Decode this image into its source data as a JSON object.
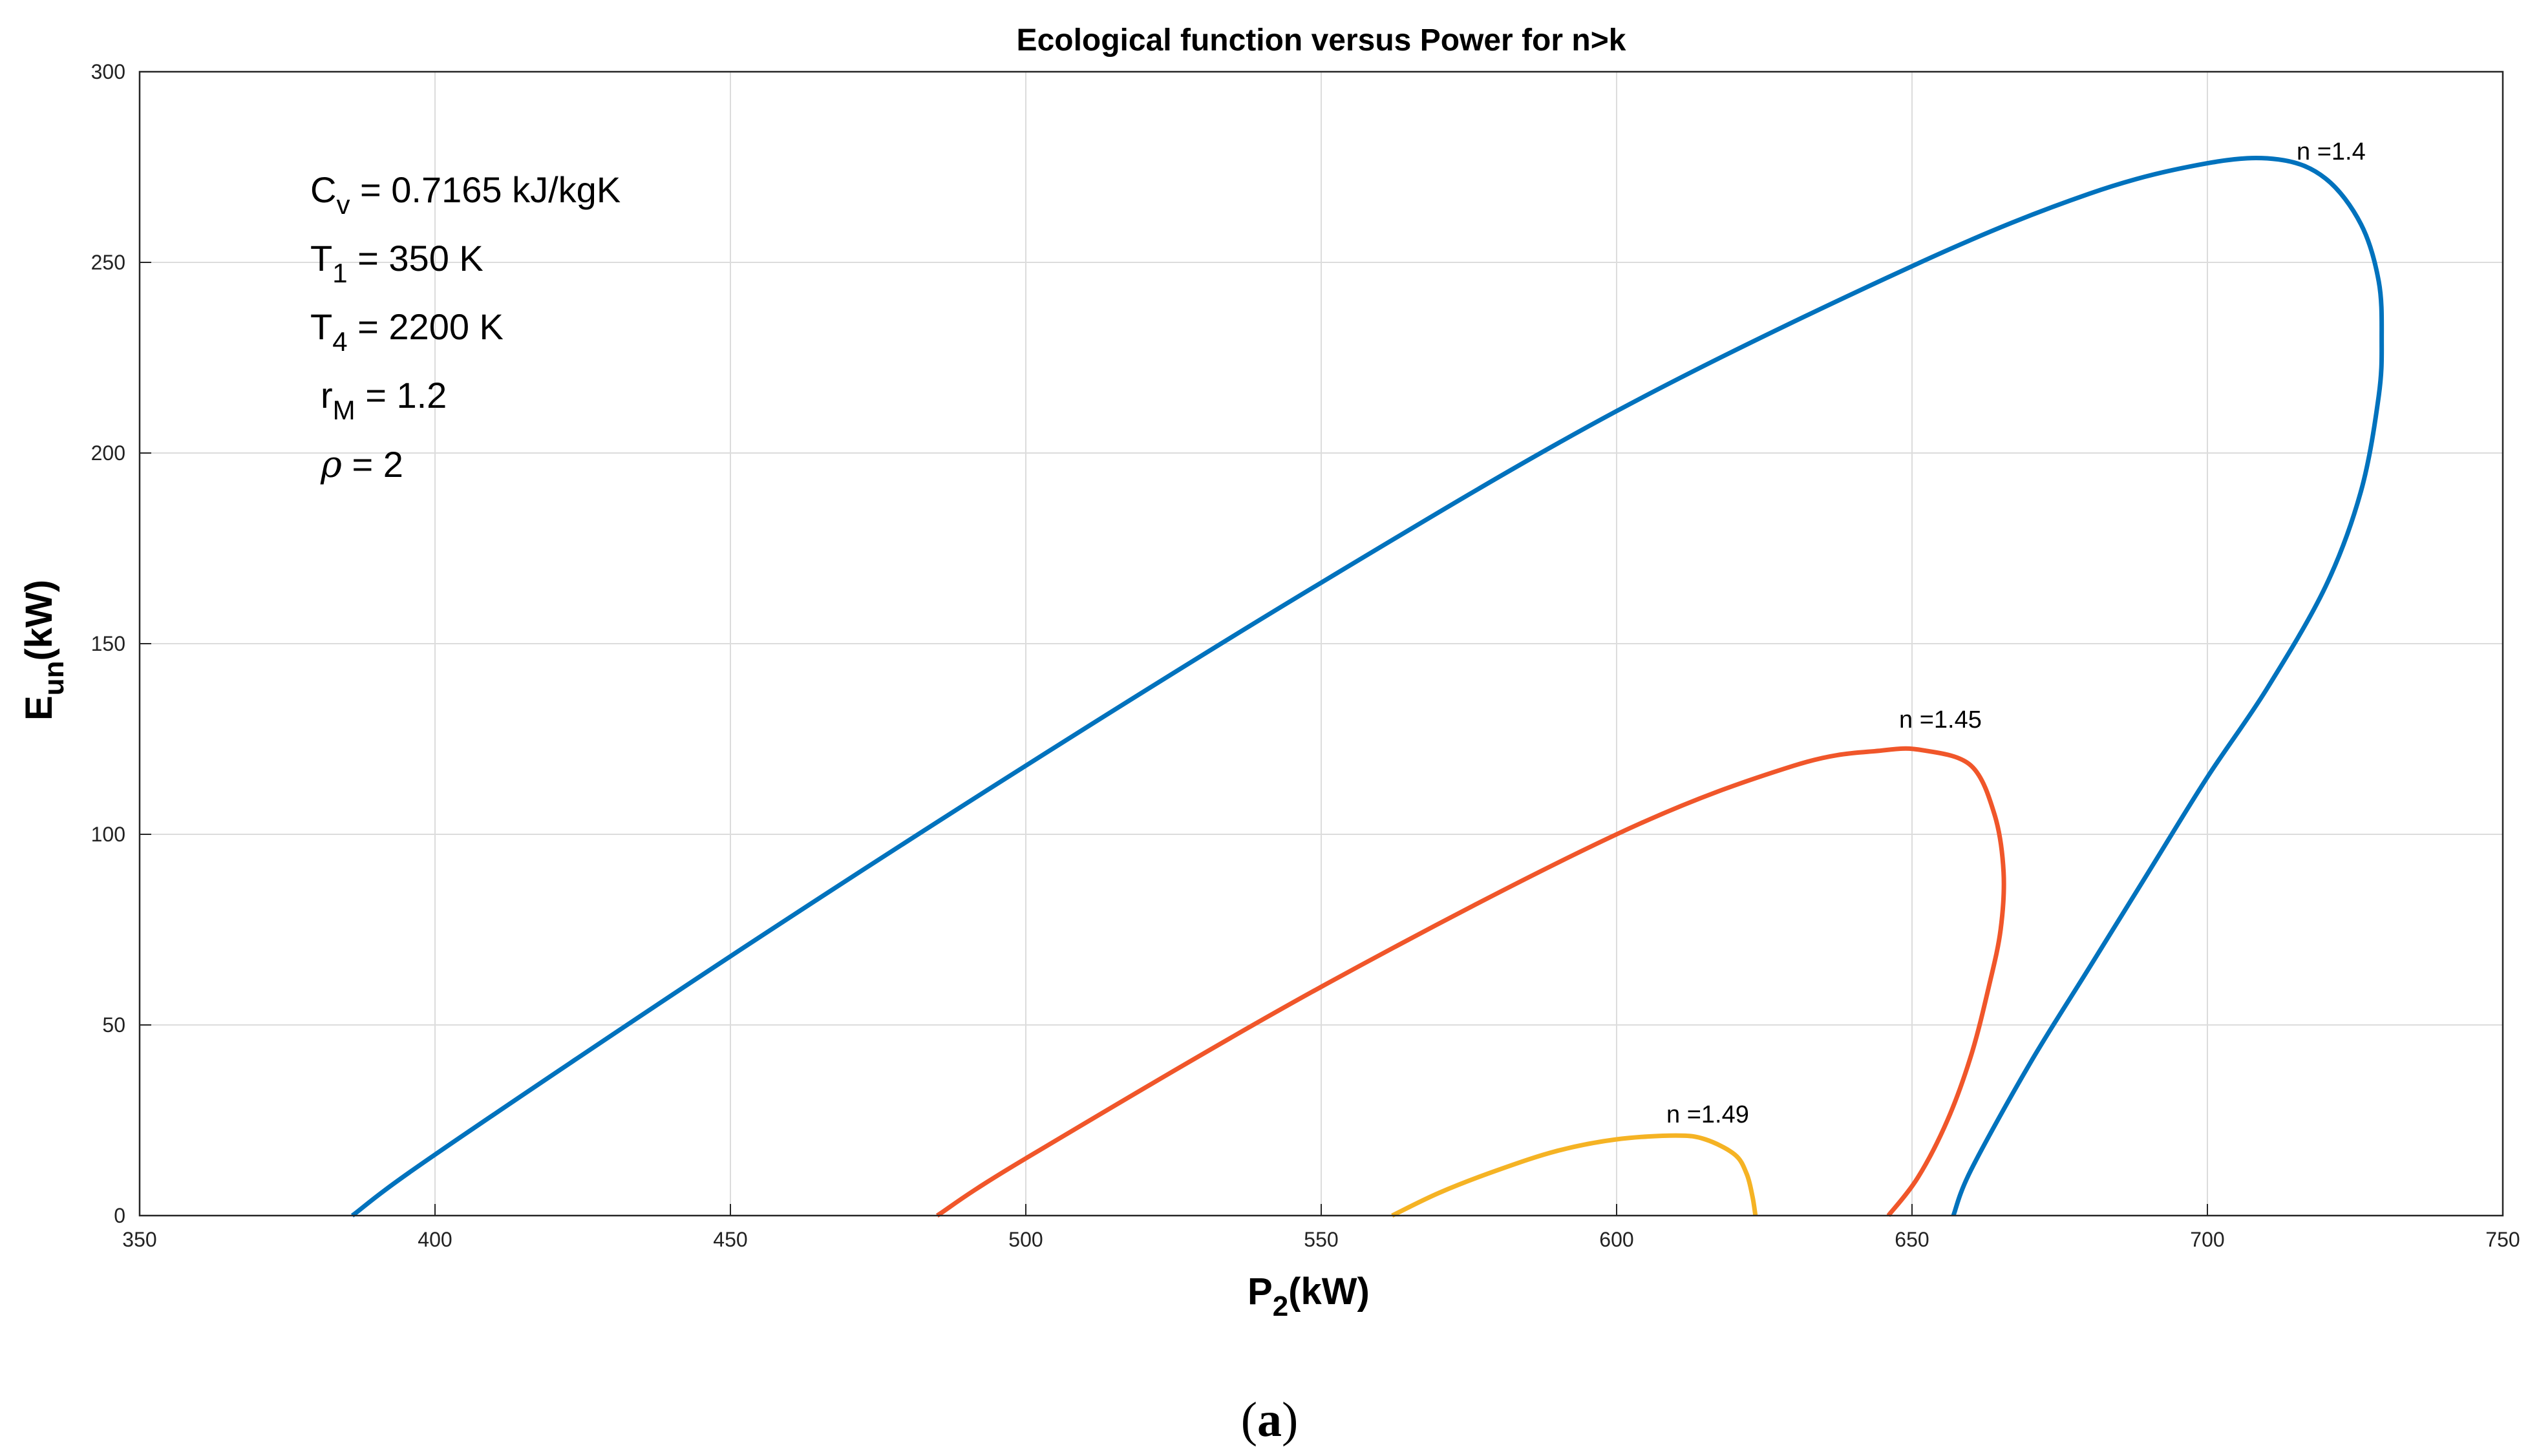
{
  "chart_data": {
    "type": "line",
    "title": "Ecological function versus Power for n>k",
    "xlabel": {
      "main": "P",
      "sub": "2",
      "unit": "(kW)"
    },
    "ylabel": {
      "main": "E",
      "sub": "un",
      "unit": "(kW)"
    },
    "xlim": [
      350,
      750
    ],
    "ylim": [
      0,
      300
    ],
    "xticks": [
      350,
      400,
      450,
      500,
      550,
      600,
      650,
      700,
      750
    ],
    "yticks": [
      0,
      50,
      100,
      150,
      200,
      250,
      300
    ],
    "grid": true,
    "parameters": [
      {
        "main": "C",
        "sub": "v",
        "rest": " = 0.7165 kJ/kgK"
      },
      {
        "main": "T",
        "sub": "1",
        "rest": " = 350 K"
      },
      {
        "main": "T",
        "sub": "4",
        "rest": " = 2200 K"
      },
      {
        "main": "r",
        "sub": "M",
        "rest": " = 1.2"
      },
      {
        "main": "ρ",
        "sub": "",
        "rest": " = 2"
      }
    ],
    "series": [
      {
        "name": "n =1.4",
        "color": "#0072BD",
        "x": [
          386,
          400,
          450,
          500,
          550,
          600,
          650,
          680,
          700,
          712,
          720,
          726,
          729,
          729.5,
          729,
          726,
          720,
          710,
          700,
          690,
          680,
          670,
          660,
          657
        ],
        "y": [
          0,
          16,
          68,
          118,
          166,
          211,
          249,
          268,
          276,
          277,
          272,
          260,
          245,
          230,
          215,
          190,
          165,
          138,
          115,
          90,
          65,
          40,
          12,
          0
        ]
      },
      {
        "name": "n =1.45",
        "color": "#F0562A",
        "x": [
          485,
          500,
          550,
          600,
          630,
          645,
          652,
          660,
          664,
          665.5,
          665,
          663,
          660,
          656,
          651,
          646
        ],
        "y": [
          0,
          15,
          60,
          100,
          118,
          122,
          122,
          118,
          105,
          90,
          75,
          60,
          42,
          25,
          10,
          0
        ]
      },
      {
        "name": "n =1.49",
        "color": "#F5B324",
        "x": [
          562,
          570,
          580,
          590,
          600,
          610,
          615,
          620,
          622,
          623,
          623.5
        ],
        "y": [
          0,
          6,
          12,
          17,
          20,
          21,
          20,
          16,
          11,
          5,
          0
        ]
      }
    ]
  },
  "caption": {
    "open": "(",
    "letter": "a",
    "close": ")"
  }
}
